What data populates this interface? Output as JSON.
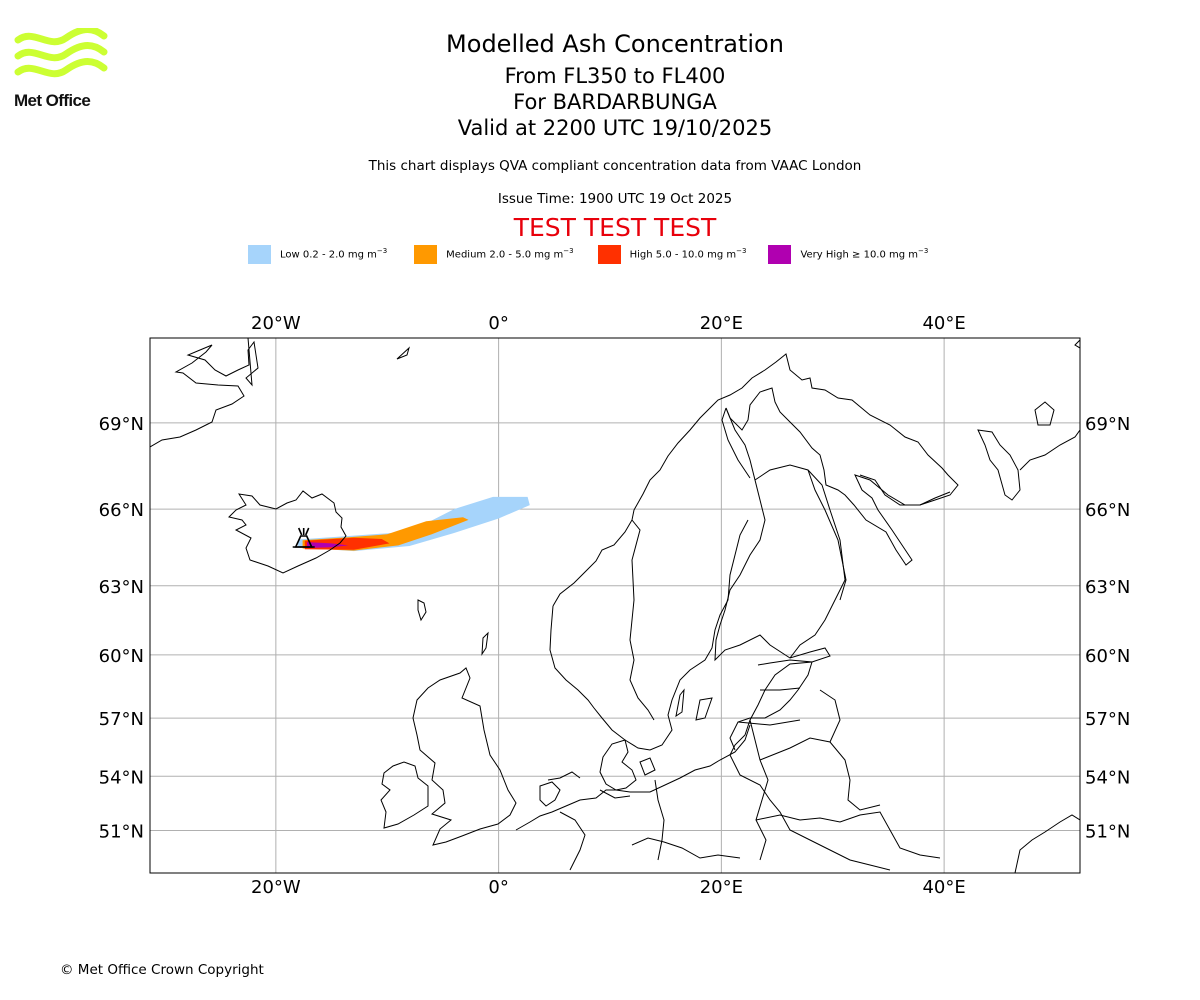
{
  "header": {
    "logo_text": "Met Office",
    "logo_color": "#ccff33",
    "title": "Modelled Ash Concentration",
    "level_range": "From FL350 to FL400",
    "volcano": "For BARDARBUNGA",
    "valid_time": "Valid at 2200 UTC 19/10/2025",
    "description": "This chart displays QVA compliant concentration data from VAAC London",
    "issue_time": "Issue Time: 1900 UTC 19 Oct 2025",
    "test_banner": "TEST TEST TEST",
    "test_color": "#e8000b"
  },
  "legend": [
    {
      "label": "Low 0.2 - 2.0 mg m",
      "color": "#a6d4fb"
    },
    {
      "label": "Medium 2.0 - 5.0 mg m",
      "color": "#ff9900"
    },
    {
      "label": "High 5.0 - 10.0 mg m",
      "color": "#ff3000"
    },
    {
      "label": "Very High ≥ 10.0 mg m",
      "color": "#b000b0"
    }
  ],
  "legend_unit_exp": "−3",
  "map": {
    "lon_range": [
      -31.3,
      52.2
    ],
    "lat_range": [
      48.5,
      71.6
    ],
    "lon_ticks": [
      {
        "value": -20,
        "label": "20°W"
      },
      {
        "value": 0,
        "label": "0°"
      },
      {
        "value": 20,
        "label": "20°E"
      },
      {
        "value": 40,
        "label": "40°E"
      }
    ],
    "lat_ticks": [
      {
        "value": 69,
        "label": "69°N"
      },
      {
        "value": 66,
        "label": "66°N"
      },
      {
        "value": 63,
        "label": "63°N"
      },
      {
        "value": 60,
        "label": "60°N"
      },
      {
        "value": 57,
        "label": "57°N"
      },
      {
        "value": 54,
        "label": "54°N"
      },
      {
        "value": 51,
        "label": "51°N"
      }
    ],
    "grid_color": "#b0b0b0",
    "volcano_name": "BARDARBUNGA",
    "volcano_location": {
      "lon": -17.5,
      "lat": 64.6
    },
    "ash_plume": {
      "low": [
        [
          -18,
          64.55
        ],
        [
          -13,
          64.4
        ],
        [
          -8,
          64.6
        ],
        [
          -4,
          65.1
        ],
        [
          0,
          65.65
        ],
        [
          2.8,
          66.15
        ],
        [
          2.6,
          66.45
        ],
        [
          -0.5,
          66.45
        ],
        [
          -4,
          66.0
        ],
        [
          -8,
          65.15
        ],
        [
          -13,
          65.0
        ],
        [
          -18,
          64.85
        ]
      ],
      "medium": [
        [
          -17.6,
          64.5
        ],
        [
          -13,
          64.42
        ],
        [
          -9,
          64.62
        ],
        [
          -6,
          65.05
        ],
        [
          -2.7,
          65.6
        ],
        [
          -3.2,
          65.7
        ],
        [
          -6.5,
          65.55
        ],
        [
          -10,
          65.05
        ],
        [
          -13,
          64.95
        ],
        [
          -17.6,
          64.82
        ]
      ],
      "high": [
        [
          -17.4,
          64.47
        ],
        [
          -13,
          64.45
        ],
        [
          -9.8,
          64.7
        ],
        [
          -10.5,
          64.87
        ],
        [
          -13,
          64.92
        ],
        [
          -17.4,
          64.8
        ]
      ],
      "very_high": [
        [
          -17.2,
          64.52
        ],
        [
          -15,
          64.55
        ],
        [
          -13.5,
          64.62
        ],
        [
          -15,
          64.7
        ],
        [
          -17.2,
          64.75
        ]
      ]
    }
  },
  "footer": {
    "copyright": "© Met Office Crown Copyright"
  }
}
